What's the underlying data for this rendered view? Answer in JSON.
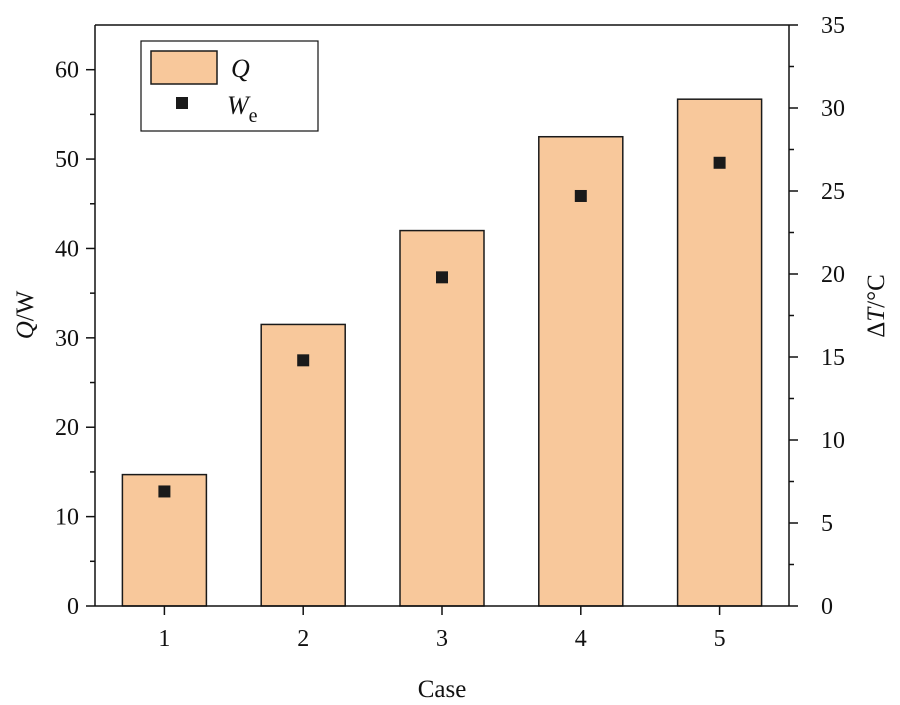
{
  "chart_data": {
    "type": "bar",
    "categories": [
      "1",
      "2",
      "3",
      "4",
      "5"
    ],
    "series": [
      {
        "name": "Q",
        "type": "bar",
        "axis": "left",
        "color": "#F8C89B",
        "values": [
          14.7,
          31.5,
          42.0,
          52.5,
          56.7
        ]
      },
      {
        "name": "W_e",
        "type": "scatter",
        "axis": "right",
        "color": "#1a1a1a",
        "values": [
          6.9,
          14.8,
          19.8,
          24.7,
          26.7
        ]
      }
    ],
    "xlabel": "Case",
    "ylabel": {
      "main": "Q",
      "rest": "/W"
    },
    "y2label": {
      "prefix": "Δ",
      "main": "T",
      "rest": "/°C"
    },
    "ylim": [
      0,
      65
    ],
    "y2lim": [
      0,
      35
    ],
    "yticks": [
      0,
      10,
      20,
      30,
      40,
      50,
      60
    ],
    "y2ticks": [
      0,
      5,
      10,
      15,
      20,
      25,
      30,
      35
    ],
    "legend": {
      "position": "top-left",
      "entries": [
        {
          "main": "Q",
          "sub": ""
        },
        {
          "main": "W",
          "sub": "e"
        }
      ]
    },
    "grid": false
  }
}
